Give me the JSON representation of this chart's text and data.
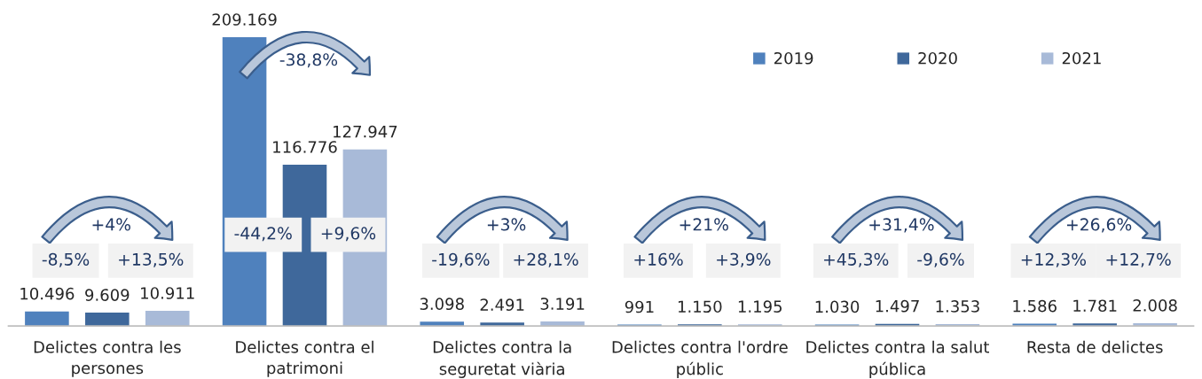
{
  "chart_data": {
    "type": "bar",
    "categories": [
      "Delictes contra les\npersones",
      "Delictes contra el\npatrimoni",
      "Delictes contra la\nseguretat viària",
      "Delictes contra l'ordre\npúblic",
      "Delictes contra la salut\npública",
      "Resta de delictes"
    ],
    "series": [
      {
        "name": "2019",
        "color": "#4f81bd",
        "values": [
          10496,
          209169,
          3098,
          991,
          1030,
          1586
        ],
        "value_labels": [
          "10.496",
          "209.169",
          "3.098",
          "991",
          "1.030",
          "1.586"
        ]
      },
      {
        "name": "2020",
        "color": "#3f689b",
        "values": [
          9609,
          116776,
          2491,
          1150,
          1497,
          1781
        ],
        "value_labels": [
          "9.609",
          "116.776",
          "2.491",
          "1.150",
          "1.497",
          "1.781"
        ]
      },
      {
        "name": "2021",
        "color": "#a8bad8",
        "values": [
          10911,
          127947,
          3191,
          1195,
          1353,
          2008
        ],
        "value_labels": [
          "10.911",
          "127.947",
          "3.191",
          "1.195",
          "1.353",
          "2.008"
        ]
      }
    ],
    "legend": "top right",
    "tick_labels": "x",
    "annotations": [
      "+4%",
      "-8,5%",
      "+13,5%",
      "-38,8%",
      "-44,2%",
      "+9,6%",
      "+3%",
      "-19,6%",
      "+28,1%",
      "+21%",
      "+16%",
      "+3,9%",
      "+31,4%",
      "+45,3%",
      "-9,6%",
      "+26,6%",
      "+12,3%",
      "+12,7%"
    ]
  }
}
